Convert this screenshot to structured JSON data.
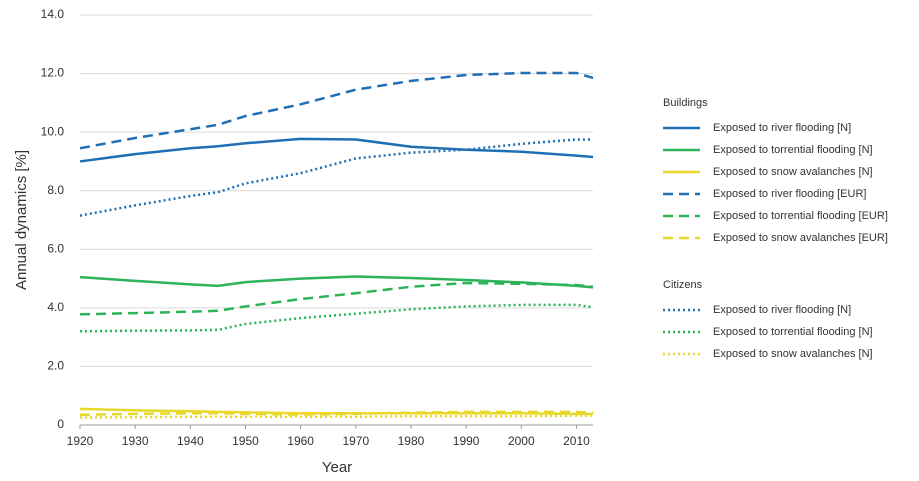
{
  "chart_data": {
    "type": "line",
    "x_label": "Year",
    "y_label": "Annual dynamics [%]",
    "x": [
      1920,
      1930,
      1940,
      1945,
      1950,
      1960,
      1970,
      1980,
      1990,
      2000,
      2010,
      2013
    ],
    "xlim": [
      1920,
      2013
    ],
    "xticks": [
      1920,
      1930,
      1940,
      1950,
      1960,
      1970,
      1980,
      1990,
      2000,
      2010
    ],
    "ylim": [
      0,
      14
    ],
    "yticks": [
      0,
      {
        "value": 2,
        "label": "2.0"
      },
      {
        "value": 4,
        "label": "4.0"
      },
      {
        "value": 6,
        "label": "6.0"
      },
      {
        "value": 8,
        "label": "8.0"
      },
      {
        "value": 10,
        "label": "10.0"
      },
      {
        "value": 12,
        "label": "12.0"
      },
      {
        "value": 14,
        "label": "14.0"
      }
    ],
    "grid": true,
    "legend_groups": [
      "Buildings",
      "Citizens"
    ],
    "series": [
      {
        "name": "Exposed to river flooding [N]",
        "group": 0,
        "style": "solid",
        "color": "#1f6fb5",
        "values": [
          9.0,
          9.25,
          9.45,
          9.52,
          9.62,
          9.77,
          9.75,
          9.5,
          9.4,
          9.33,
          9.2,
          9.15
        ]
      },
      {
        "name": "Exposed to torrential flooding [N]",
        "group": 0,
        "style": "solid",
        "color": "#2db35a",
        "values": [
          5.05,
          4.92,
          4.8,
          4.75,
          4.88,
          5.0,
          5.07,
          5.02,
          4.95,
          4.87,
          4.75,
          4.7
        ]
      },
      {
        "name": "Exposed to snow avalanches [N]",
        "group": 0,
        "style": "solid",
        "color": "#e8d82a",
        "values": [
          0.55,
          0.5,
          0.47,
          0.45,
          0.43,
          0.4,
          0.4,
          0.4,
          0.4,
          0.4,
          0.38,
          0.38
        ]
      },
      {
        "name": "Exposed to river flooding [EUR]",
        "group": 0,
        "style": "dashed",
        "color": "#1f6fb5",
        "values": [
          9.45,
          9.8,
          10.1,
          10.25,
          10.55,
          10.95,
          11.45,
          11.75,
          11.95,
          12.02,
          12.02,
          11.85
        ]
      },
      {
        "name": "Exposed to torrential flooding [EUR]",
        "group": 0,
        "style": "dashed",
        "color": "#2db35a",
        "values": [
          3.78,
          3.82,
          3.87,
          3.9,
          4.05,
          4.3,
          4.5,
          4.72,
          4.85,
          4.82,
          4.78,
          4.72
        ]
      },
      {
        "name": "Exposed to snow avalanches [EUR]",
        "group": 0,
        "style": "dashed",
        "color": "#e8d82a",
        "values": [
          0.35,
          0.38,
          0.4,
          0.4,
          0.38,
          0.36,
          0.38,
          0.42,
          0.45,
          0.45,
          0.45,
          0.42
        ]
      },
      {
        "name": "Exposed to river flooding [N]",
        "group": 1,
        "style": "dotted",
        "color": "#1f6fb5",
        "values": [
          7.15,
          7.5,
          7.82,
          7.95,
          8.25,
          8.6,
          9.1,
          9.3,
          9.4,
          9.6,
          9.75,
          9.75
        ]
      },
      {
        "name": "Exposed to torrential flooding [N]",
        "group": 1,
        "style": "dotted",
        "color": "#2db35a",
        "values": [
          3.2,
          3.22,
          3.23,
          3.25,
          3.45,
          3.65,
          3.8,
          3.95,
          4.05,
          4.1,
          4.1,
          4.02
        ]
      },
      {
        "name": "Exposed to snow avalanches [N]",
        "group": 1,
        "style": "dotted",
        "color": "#e8d82a",
        "values": [
          0.25,
          0.27,
          0.28,
          0.28,
          0.28,
          0.28,
          0.28,
          0.3,
          0.3,
          0.3,
          0.32,
          0.32
        ]
      }
    ]
  }
}
